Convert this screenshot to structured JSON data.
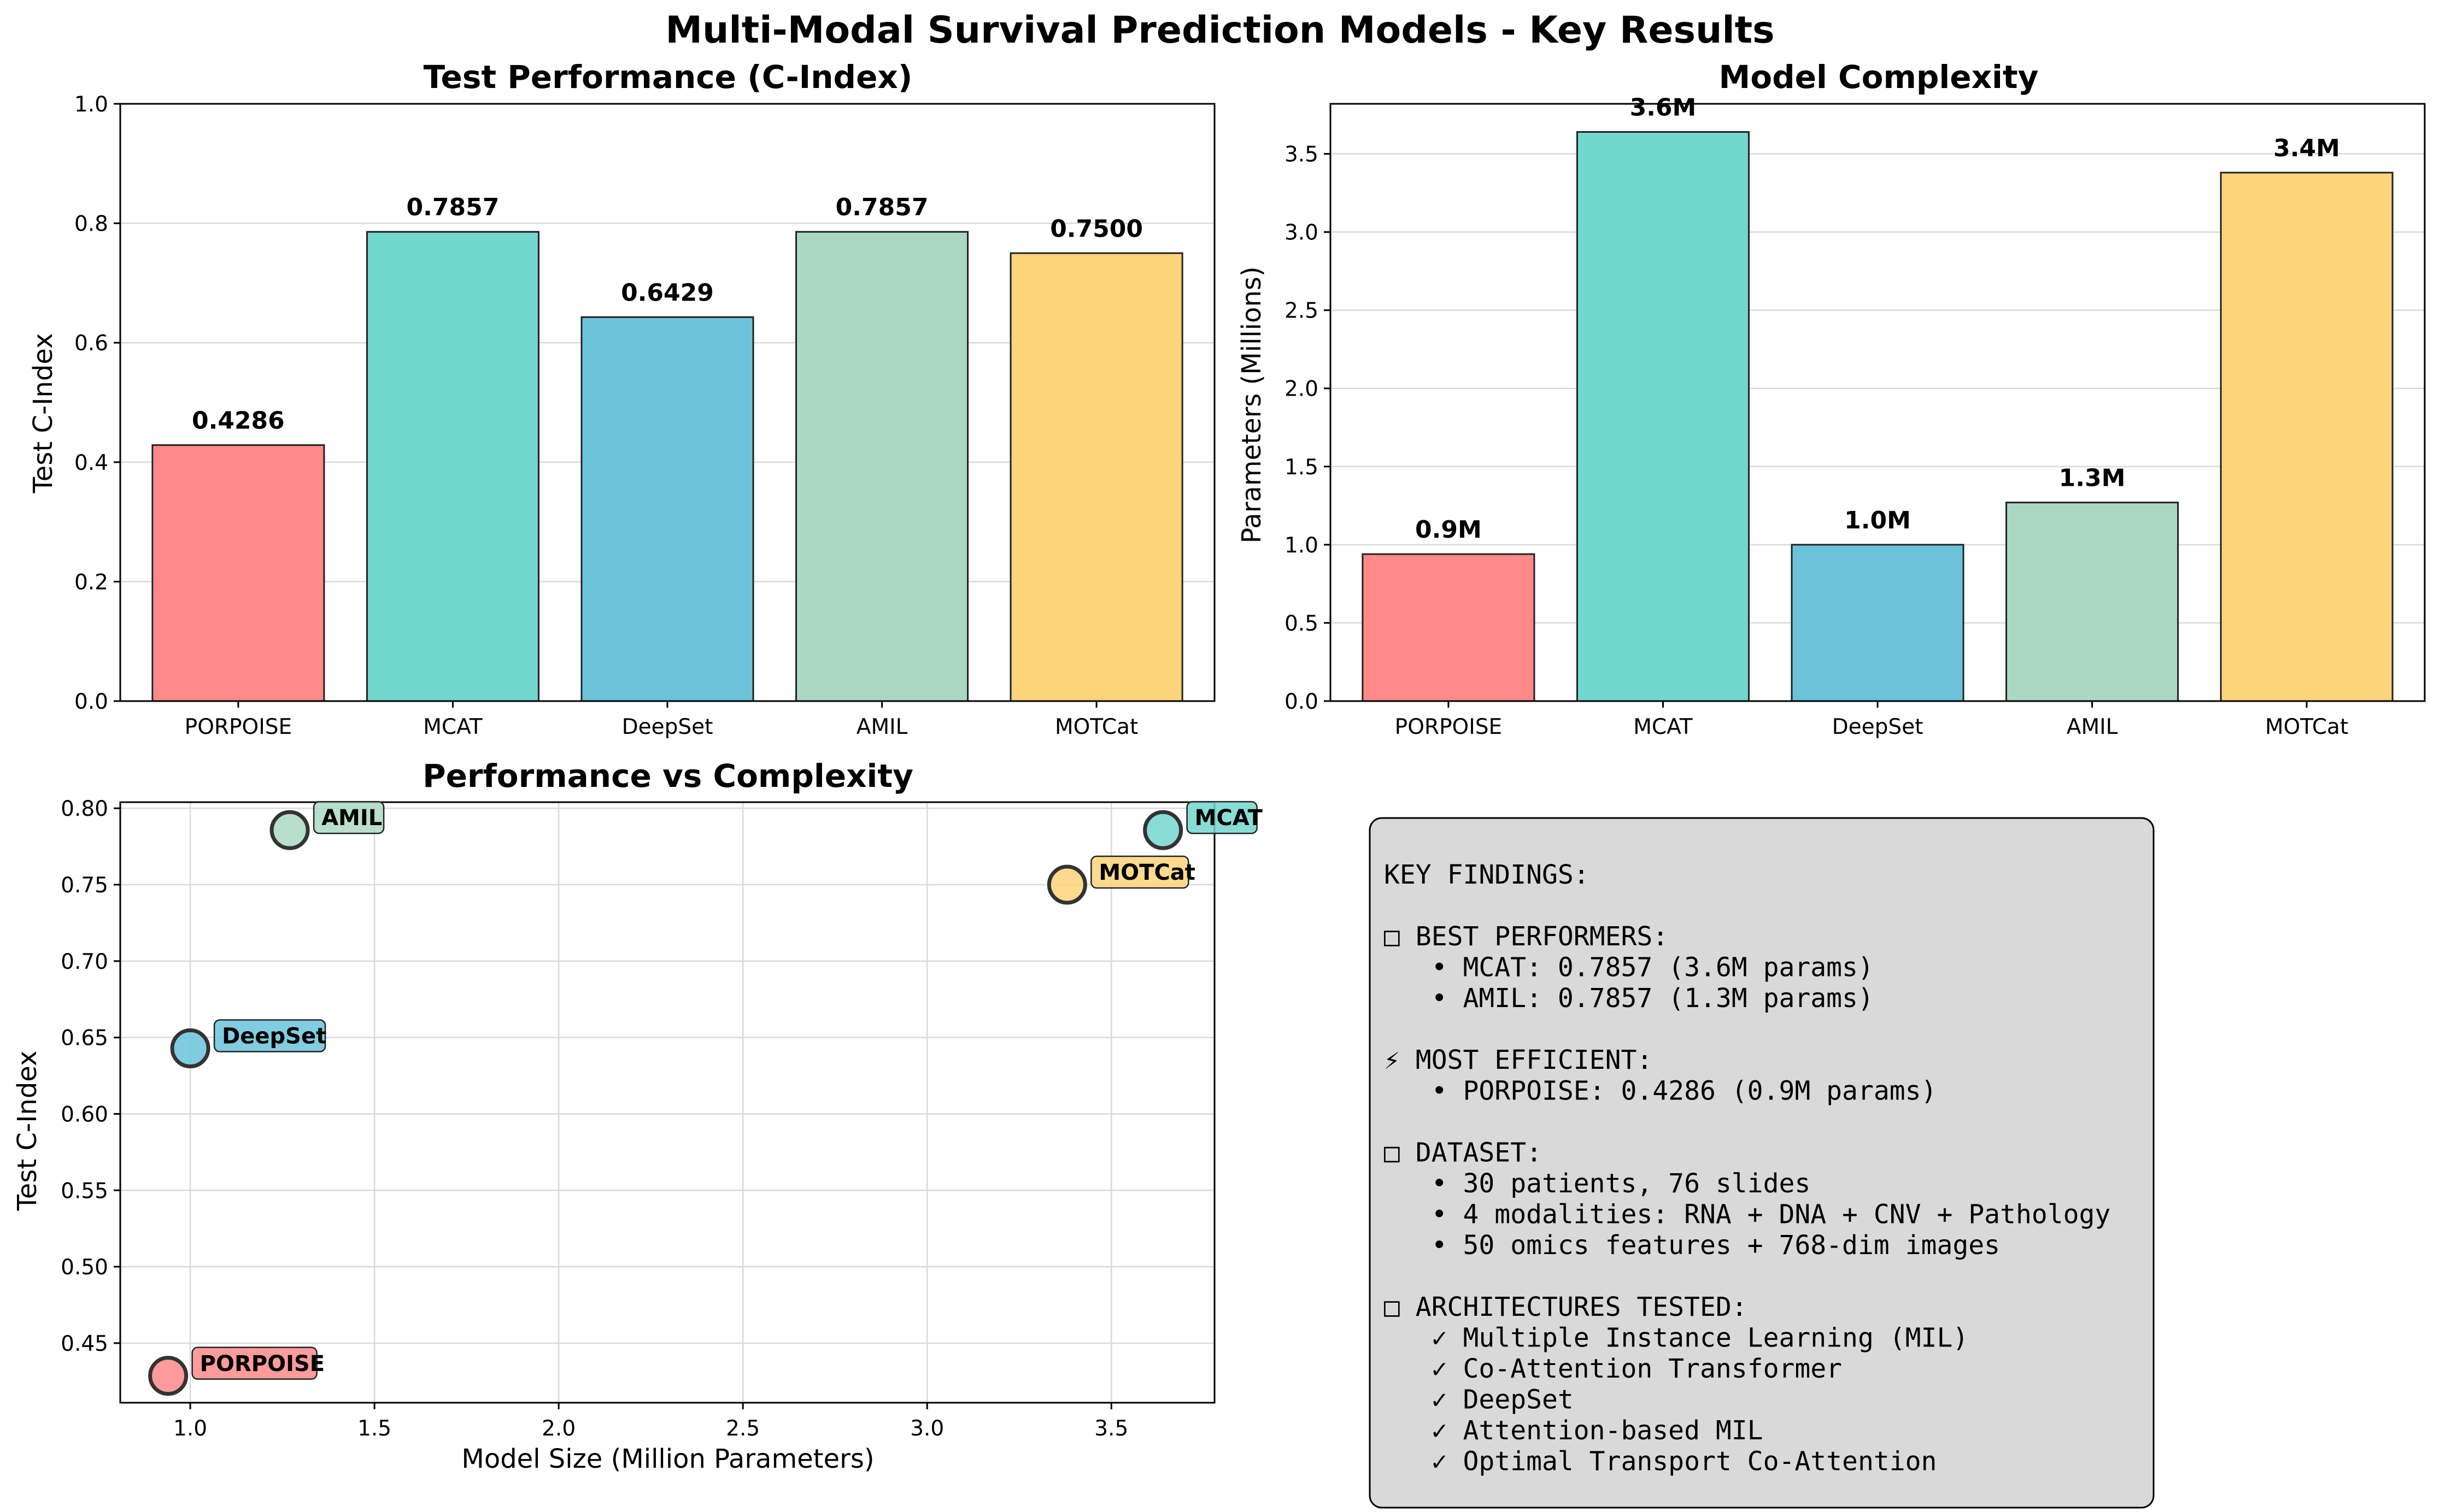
{
  "figure_title": "Multi-Modal Survival Prediction Models - Key Results",
  "chart_data": [
    {
      "type": "bar",
      "title": "Test Performance (C-Index)",
      "xlabel": "",
      "ylabel": "Test C-Index",
      "categories": [
        "PORPOISE",
        "MCAT",
        "DeepSet",
        "AMIL",
        "MOTCat"
      ],
      "values": [
        0.4286,
        0.7857,
        0.6429,
        0.7857,
        0.75
      ],
      "value_labels": [
        "0.4286",
        "0.7857",
        "0.6429",
        "0.7857",
        "0.7500"
      ],
      "colors": [
        "#FF8A89",
        "#72D7CF",
        "#6BC3DA",
        "#ABD8C3",
        "#FDD47A"
      ],
      "ylim": [
        0,
        1.0
      ],
      "yticks": [
        0.0,
        0.2,
        0.4,
        0.6,
        0.8,
        1.0
      ],
      "ytick_labels": [
        "0.0",
        "0.2",
        "0.4",
        "0.6",
        "0.8",
        "1.0"
      ],
      "grid": "y"
    },
    {
      "type": "bar",
      "title": "Model Complexity",
      "xlabel": "",
      "ylabel": "Parameters (Millions)",
      "categories": [
        "PORPOISE",
        "MCAT",
        "DeepSet",
        "AMIL",
        "MOTCat"
      ],
      "values": [
        0.94,
        3.64,
        1.0,
        1.27,
        3.38
      ],
      "value_labels": [
        "0.9M",
        "3.6M",
        "1.0M",
        "1.3M",
        "3.4M"
      ],
      "colors": [
        "#FF8A89",
        "#72D7CF",
        "#6BC3DA",
        "#ABD8C3",
        "#FDD47A"
      ],
      "ylim": [
        0,
        3.82
      ],
      "yticks": [
        0.0,
        0.5,
        1.0,
        1.5,
        2.0,
        2.5,
        3.0,
        3.5
      ],
      "ytick_labels": [
        "0.0",
        "0.5",
        "1.0",
        "1.5",
        "2.0",
        "2.5",
        "3.0",
        "3.5"
      ],
      "grid": "y"
    },
    {
      "type": "scatter",
      "title": "Performance vs Complexity",
      "xlabel": "Model Size (Million Parameters)",
      "ylabel": "Test C-Index",
      "points": [
        {
          "name": "PORPOISE",
          "x": 0.94,
          "y": 0.4286,
          "color": "#FF8A89"
        },
        {
          "name": "MCAT",
          "x": 3.64,
          "y": 0.7857,
          "color": "#72D7CF"
        },
        {
          "name": "DeepSet",
          "x": 1.0,
          "y": 0.6429,
          "color": "#6BC3DA"
        },
        {
          "name": "AMIL",
          "x": 1.27,
          "y": 0.7857,
          "color": "#ABD8C3"
        },
        {
          "name": "MOTCat",
          "x": 3.38,
          "y": 0.75,
          "color": "#FDD47A"
        }
      ],
      "xlim": [
        0.81,
        3.78
      ],
      "ylim": [
        0.411,
        0.804
      ],
      "xticks": [
        1.0,
        1.5,
        2.0,
        2.5,
        3.0,
        3.5
      ],
      "xtick_labels": [
        "1.0",
        "1.5",
        "2.0",
        "2.5",
        "3.0",
        "3.5"
      ],
      "yticks": [
        0.45,
        0.5,
        0.55,
        0.6,
        0.65,
        0.7,
        0.75,
        0.8
      ],
      "ytick_labels": [
        "0.45",
        "0.50",
        "0.55",
        "0.60",
        "0.65",
        "0.70",
        "0.75",
        "0.80"
      ],
      "grid": "both"
    }
  ],
  "findings": {
    "lines": [
      "KEY FINDINGS:",
      "",
      "□ BEST PERFORMERS:",
      "   • MCAT: 0.7857 (3.6M params)",
      "   • AMIL: 0.7857 (1.3M params)",
      "",
      "⚡ MOST EFFICIENT:",
      "   • PORPOISE: 0.4286 (0.9M params)",
      "",
      "□ DATASET:",
      "   • 30 patients, 76 slides",
      "   • 4 modalities: RNA + DNA + CNV + Pathology",
      "   • 50 omics features + 768-dim images",
      "",
      "□ ARCHITECTURES TESTED:",
      "   ✓ Multiple Instance Learning (MIL)",
      "   ✓ Co-Attention Transformer",
      "   ✓ DeepSet",
      "   ✓ Attention-based MIL",
      "   ✓ Optimal Transport Co-Attention"
    ]
  }
}
